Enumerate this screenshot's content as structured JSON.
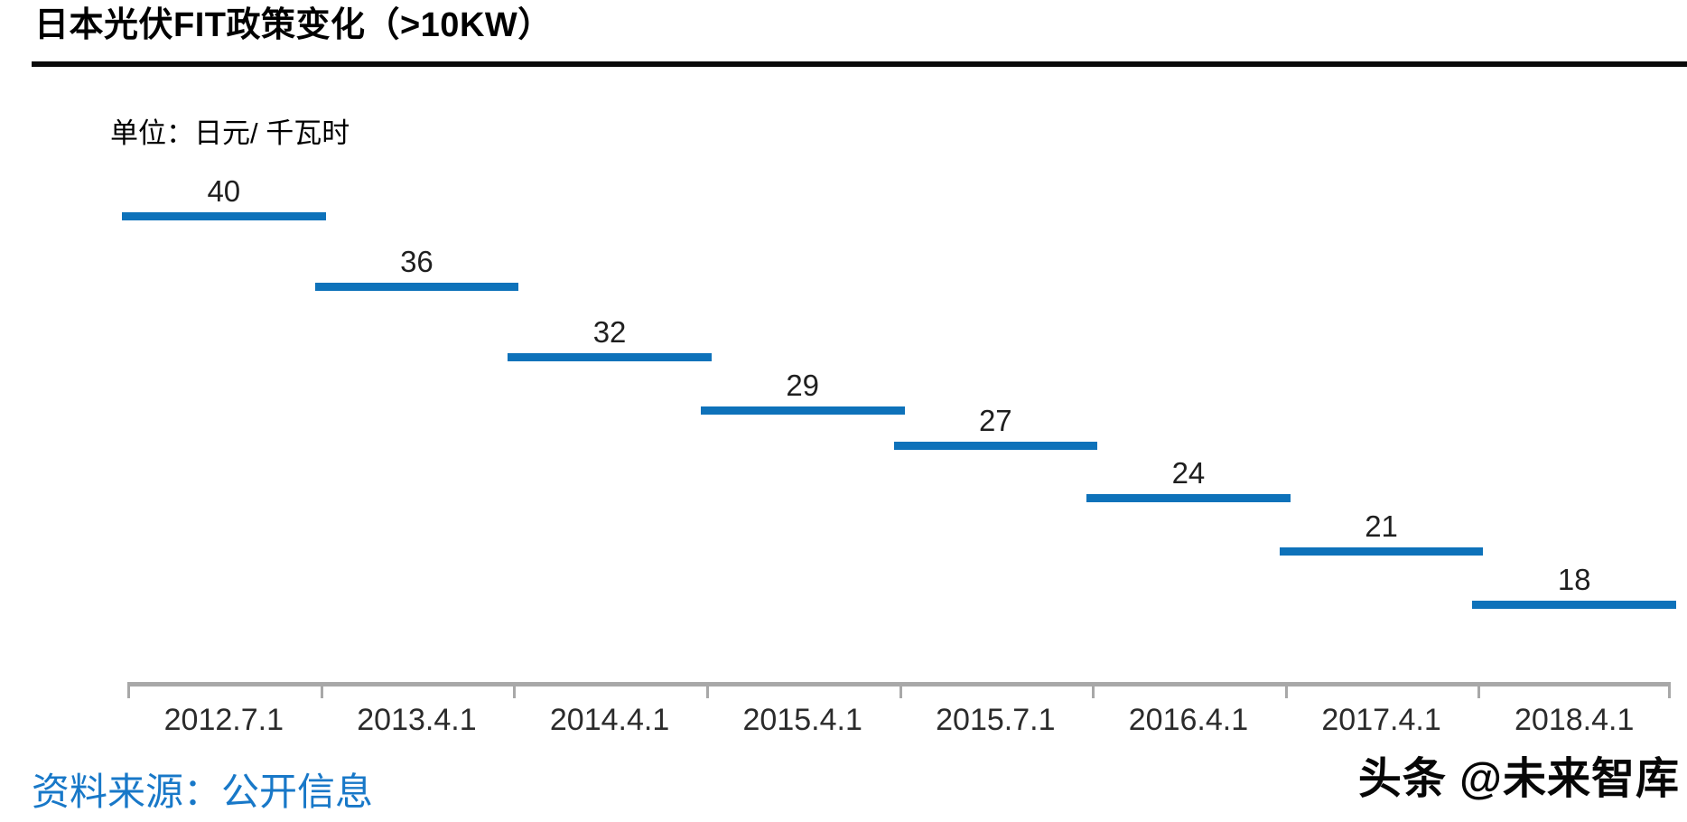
{
  "header": {
    "title": "日本光伏FIT政策变化（>10KW）"
  },
  "chart_data": {
    "type": "bar",
    "subtype": "step-level-bars",
    "title": "日本光伏FIT政策变化（>10KW）",
    "unit_label": "单位：日元/ 千瓦时",
    "categories": [
      "2012.7.1",
      "2013.4.1",
      "2014.4.1",
      "2015.4.1",
      "2015.7.1",
      "2016.4.1",
      "2017.4.1",
      "2018.4.1"
    ],
    "values": [
      40,
      36,
      32,
      29,
      27,
      24,
      21,
      18
    ],
    "xlabel": "",
    "ylabel": "",
    "grid": false,
    "legend": "none",
    "y_axis_visible": false,
    "value_labels_shown": true
  },
  "colors": {
    "bar": "#0E72BA",
    "axis": "#A8A8A8",
    "value_label": "#1F1F1F",
    "tick_label": "#2B2B2B",
    "source_text": "#1878C8",
    "title_text": "#000000"
  },
  "footer": {
    "source": "资料来源：公开信息",
    "watermark": "头条 @未来智库"
  }
}
